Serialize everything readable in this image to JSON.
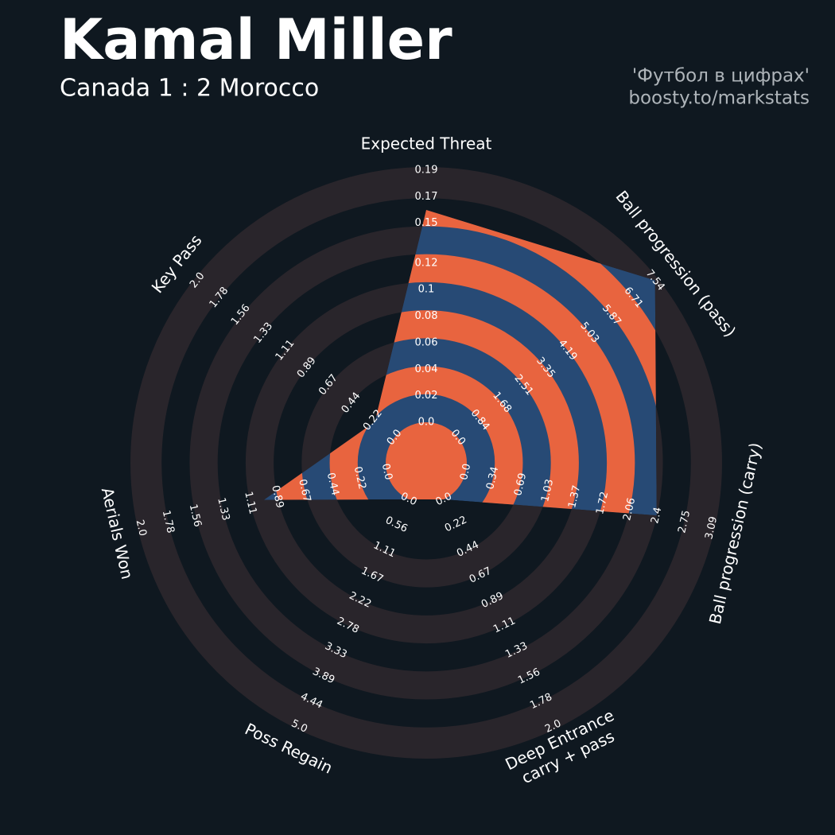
{
  "chart_data": {
    "type": "radar",
    "title": "Kamal Miller",
    "subtitle": "Canada 1 : 2 Morocco",
    "credits": [
      "'Футбол в цифрах'",
      "boosty.to/markstats"
    ],
    "axes": [
      {
        "label": [
          "Expected Threat"
        ],
        "lim": [
          0,
          0.19
        ],
        "ticks": [
          {
            "value": 0,
            "label": "0.0"
          },
          0.02,
          0.04,
          0.06,
          0.08,
          0.1,
          0.12,
          0.15,
          0.17,
          0.19
        ]
      },
      {
        "label": [
          "Ball progression (pass)"
        ],
        "lim": [
          0,
          7.54
        ],
        "ticks": [
          {
            "value": 0,
            "label": "0.0"
          },
          0.84,
          1.68,
          2.51,
          3.35,
          4.19,
          5.03,
          5.87,
          6.71,
          7.54
        ]
      },
      {
        "label": [
          "Ball progression (carry)"
        ],
        "lim": [
          0,
          3.09
        ],
        "ticks": [
          {
            "value": 0,
            "label": "0.0"
          },
          0.34,
          0.69,
          1.03,
          1.37,
          1.72,
          2.06,
          2.4,
          2.75,
          3.09
        ]
      },
      {
        "label": [
          "Deep Entrance",
          "carry + pass"
        ],
        "lim": [
          0,
          2
        ],
        "ticks": [
          {
            "value": 0,
            "label": "0.0"
          },
          0.22,
          0.44,
          0.67,
          0.89,
          1.11,
          1.33,
          1.56,
          1.78,
          {
            "value": 2,
            "label": "2.0"
          }
        ]
      },
      {
        "label": [
          "Poss Regain"
        ],
        "lim": [
          0,
          5
        ],
        "ticks": [
          {
            "value": 0,
            "label": "0.0"
          },
          0.56,
          1.11,
          1.67,
          2.22,
          2.78,
          3.33,
          3.89,
          4.44,
          {
            "value": 5,
            "label": "5.0"
          }
        ]
      },
      {
        "label": [
          "Aerials Won"
        ],
        "lim": [
          0,
          2
        ],
        "ticks": [
          {
            "value": 0,
            "label": "0.0"
          },
          0.22,
          0.44,
          0.67,
          0.89,
          1.11,
          1.33,
          1.56,
          1.78,
          {
            "value": 2,
            "label": "2.0"
          }
        ]
      },
      {
        "label": [
          "Key Pass"
        ],
        "lim": [
          0,
          2
        ],
        "ticks": [
          {
            "value": 0,
            "label": "0.0"
          },
          0.22,
          0.44,
          0.67,
          0.89,
          1.11,
          1.33,
          1.56,
          1.78,
          {
            "value": 2,
            "label": "2.0"
          }
        ]
      }
    ],
    "values": [
      0.16,
      7.54,
      2.4,
      0,
      0,
      1.0,
      0.2
    ],
    "color": "#274a75",
    "ring_color": "#e8643f",
    "background_ring_color": "#29252b"
  }
}
